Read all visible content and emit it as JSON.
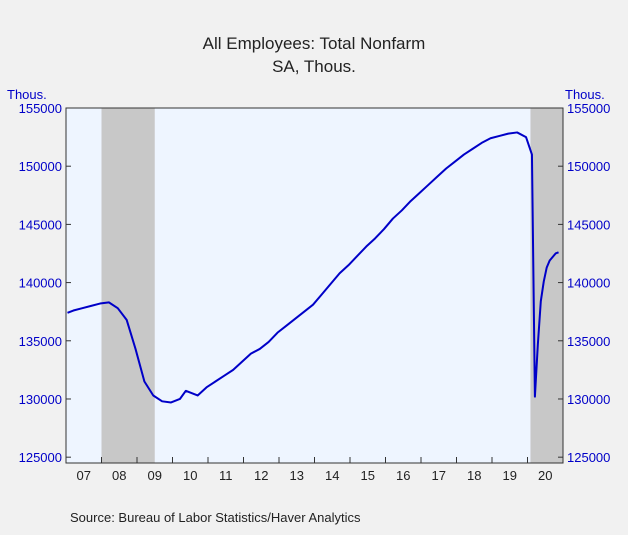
{
  "colors": {
    "background": "#f1f1f1",
    "plot_background": "#eef5ff",
    "recession_shade": "#c8c8c8",
    "series_line": "#0000c8",
    "axis_text_blue": "#0000c8",
    "text_dark": "#222222"
  },
  "chart_data": {
    "type": "line",
    "title": "All Employees: Total Nonfarm",
    "subtitle": "SA, Thous.",
    "y_unit_left": "Thous.",
    "y_unit_right": "Thous.",
    "source": "Source:  Bureau of Labor Statistics/Haver Analytics",
    "ylim": [
      124500,
      155000
    ],
    "y_ticks": [
      125000,
      130000,
      135000,
      140000,
      145000,
      150000,
      155000
    ],
    "y_tick_labels": [
      "125000",
      "130000",
      "135000",
      "140000",
      "145000",
      "150000",
      "155000"
    ],
    "xlim": [
      "2007-01",
      "2020-12"
    ],
    "x_tick_labels": [
      "07",
      "08",
      "09",
      "10",
      "11",
      "12",
      "13",
      "14",
      "15",
      "16",
      "17",
      "18",
      "19",
      "20"
    ],
    "recessions": [
      {
        "start": "2008-01",
        "end": "2009-06"
      },
      {
        "start": "2020-02",
        "end": "2020-12"
      }
    ],
    "grid": false,
    "series": [
      {
        "x": [
          "2007-01",
          "2007-03",
          "2007-06",
          "2007-09",
          "2007-12",
          "2008-03",
          "2008-06",
          "2008-09",
          "2008-12",
          "2009-03",
          "2009-06",
          "2009-09",
          "2009-12",
          "2010-03",
          "2010-05",
          "2010-09",
          "2010-12",
          "2011-03",
          "2011-06",
          "2011-09",
          "2011-12",
          "2012-03",
          "2012-06",
          "2012-09",
          "2012-12",
          "2013-03",
          "2013-06",
          "2013-09",
          "2013-12",
          "2014-03",
          "2014-06",
          "2014-09",
          "2014-12",
          "2015-03",
          "2015-06",
          "2015-09",
          "2015-12",
          "2016-03",
          "2016-06",
          "2016-09",
          "2016-12",
          "2017-03",
          "2017-06",
          "2017-09",
          "2017-12",
          "2018-03",
          "2018-06",
          "2018-09",
          "2018-12",
          "2019-03",
          "2019-06",
          "2019-09",
          "2019-12",
          "2020-02",
          "2020-03",
          "2020-04",
          "2020-05",
          "2020-06",
          "2020-07",
          "2020-08",
          "2020-09",
          "2020-10",
          "2020-11"
        ],
        "values": [
          137400,
          137600,
          137800,
          138000,
          138200,
          138300,
          137800,
          136800,
          134300,
          131500,
          130300,
          129800,
          129700,
          130000,
          130700,
          130300,
          131000,
          131500,
          132000,
          132500,
          133200,
          133900,
          134300,
          134900,
          135700,
          136300,
          136900,
          137500,
          138100,
          139000,
          139900,
          140800,
          141500,
          142300,
          143100,
          143800,
          144600,
          145500,
          146200,
          147000,
          147700,
          148400,
          149100,
          149800,
          150400,
          151000,
          151500,
          152000,
          152400,
          152600,
          152800,
          152900,
          152500,
          151000,
          130200,
          134700,
          138400,
          140100,
          141300,
          141900,
          142200,
          142500,
          142600
        ]
      }
    ]
  }
}
